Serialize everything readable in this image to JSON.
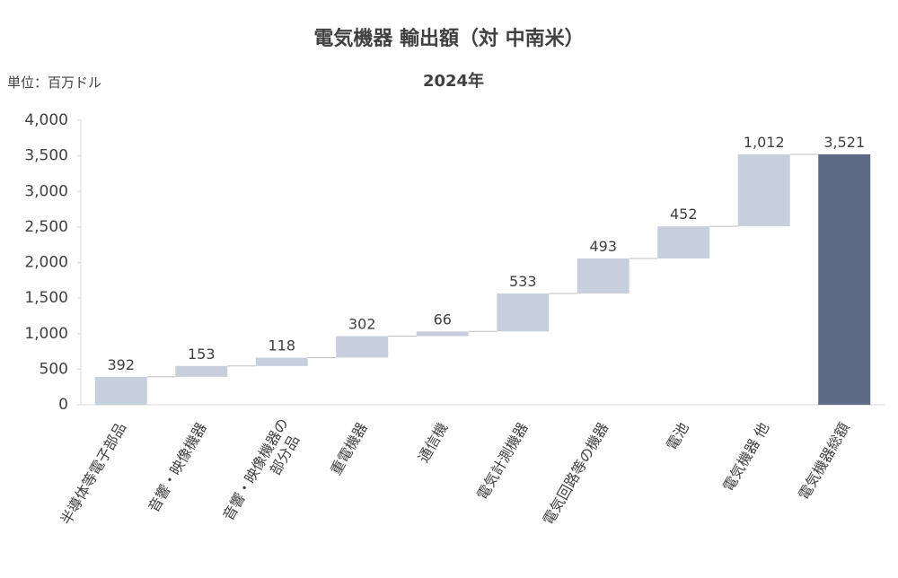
{
  "chart_data": {
    "type": "waterfall",
    "title": "電気機器 輸出額（対 中南米）",
    "subtitle": "2024年",
    "unit_label": "単位：百万ドル",
    "categories": [
      "半導体等電子部品",
      "音響・映像機器",
      "音響・映像機器の部分品",
      "重電機器",
      "通信機",
      "電気計測機器",
      "電気回路等の機器",
      "電池",
      "電気機器 他",
      "電気機器総額"
    ],
    "values": [
      392,
      153,
      118,
      302,
      66,
      533,
      493,
      452,
      1012,
      3521
    ],
    "value_labels": [
      "392",
      "153",
      "118",
      "302",
      "66",
      "533",
      "493",
      "452",
      "1,012",
      "3,521"
    ],
    "measure": [
      "relative",
      "relative",
      "relative",
      "relative",
      "relative",
      "relative",
      "relative",
      "relative",
      "relative",
      "total"
    ],
    "colors": {
      "relative": "#c8cfdc",
      "total": "#5d6b87"
    },
    "ylim": [
      0,
      4000
    ],
    "yticks": [
      0,
      500,
      {
        "value": 1000,
        "label": "1,000"
      },
      {
        "value": 1500,
        "label": "1,500"
      },
      {
        "value": 2000,
        "label": "2,000"
      },
      {
        "value": 2500,
        "label": "2,500"
      },
      {
        "value": 3000,
        "label": "3,000"
      },
      {
        "value": 3500,
        "label": "3,500"
      },
      {
        "value": 4000,
        "label": "4,000"
      }
    ],
    "grid": false
  }
}
